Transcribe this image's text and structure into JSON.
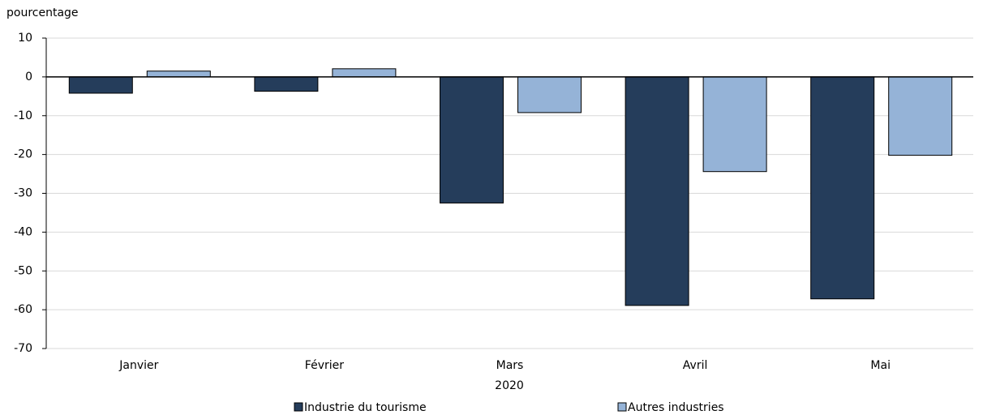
{
  "chart_data": {
    "type": "bar",
    "y_label": "pourcentage",
    "x_label": "2020",
    "categories": [
      "Janvier",
      "Février",
      "Mars",
      "Avril",
      "Mai"
    ],
    "series": [
      {
        "name": "Industrie du tourisme",
        "color": "#253d5b",
        "values": [
          -4.2,
          -3.7,
          -32.5,
          -58.9,
          -57.2
        ]
      },
      {
        "name": "Autres industries",
        "color": "#95b3d7",
        "values": [
          1.5,
          2.1,
          -9.2,
          -24.4,
          -20.2
        ]
      }
    ],
    "ylim": [
      -70,
      10
    ],
    "yticks": [
      -70,
      -60,
      -50,
      -40,
      -30,
      -20,
      -10,
      0,
      10
    ],
    "grid": true
  }
}
